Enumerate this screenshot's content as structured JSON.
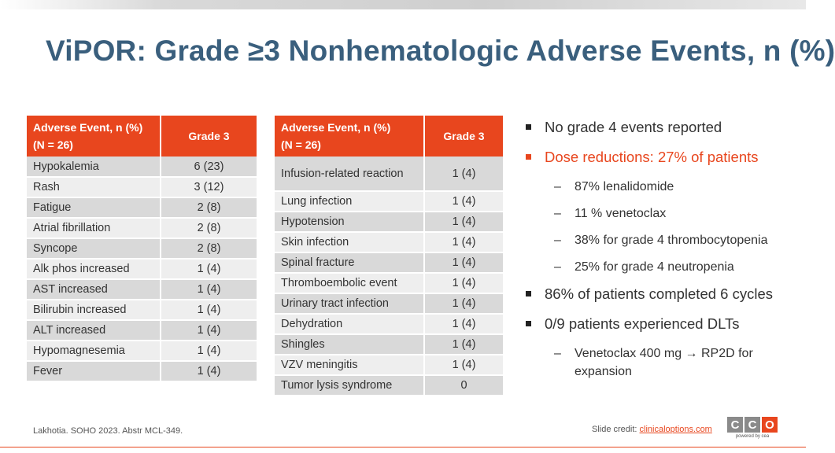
{
  "title": "ViPOR: Grade ≥3 Nonhematologic Adverse Events, n (%)",
  "table1": {
    "header_line1": "Adverse Event, n (%)",
    "header_line2": "(N = 26)",
    "grade_header": "Grade 3",
    "rows": [
      {
        "event": "Hypokalemia",
        "value": "6 (23)"
      },
      {
        "event": "Rash",
        "value": "3 (12)"
      },
      {
        "event": "Fatigue",
        "value": "2 (8)"
      },
      {
        "event": "Atrial fibrillation",
        "value": "2 (8)"
      },
      {
        "event": "Syncope",
        "value": "2 (8)"
      },
      {
        "event": "Alk phos increased",
        "value": "1 (4)"
      },
      {
        "event": "AST increased",
        "value": "1 (4)"
      },
      {
        "event": "Bilirubin increased",
        "value": "1 (4)"
      },
      {
        "event": "ALT increased",
        "value": "1 (4)"
      },
      {
        "event": "Hypomagnesemia",
        "value": "1 (4)"
      },
      {
        "event": "Fever",
        "value": "1 (4)"
      }
    ]
  },
  "table2": {
    "header_line1": "Adverse Event, n (%)",
    "header_line2": "(N = 26)",
    "grade_header": "Grade 3",
    "rows": [
      {
        "event": "Infusion-related reaction",
        "value": "1 (4)"
      },
      {
        "event": "Lung infection",
        "value": "1 (4)"
      },
      {
        "event": "Hypotension",
        "value": "1 (4)"
      },
      {
        "event": "Skin infection",
        "value": "1 (4)"
      },
      {
        "event": "Spinal fracture",
        "value": "1 (4)"
      },
      {
        "event": "Thromboembolic event",
        "value": "1 (4)"
      },
      {
        "event": "Urinary tract infection",
        "value": "1 (4)"
      },
      {
        "event": "Dehydration",
        "value": "1 (4)"
      },
      {
        "event": "Shingles",
        "value": "1 (4)"
      },
      {
        "event": "VZV meningitis",
        "value": "1 (4)"
      },
      {
        "event": "Tumor lysis syndrome",
        "value": "0"
      }
    ]
  },
  "bullets": {
    "no_grade4": "No grade 4 events reported",
    "dose_reductions": "Dose reductions: 27% of patients",
    "dose_sub": [
      "87% lenalidomide",
      "11 % venetoclax",
      "38% for grade 4 thrombocytopenia",
      "25% for grade 4 neutropenia"
    ],
    "completed": "86% of patients completed 6 cycles",
    "dlts": "0/9 patients experienced DLTs",
    "dlts_sub": "Venetoclax 400 mg → RP2D for expansion"
  },
  "footer": {
    "citation": "Lakhotia. SOHO 2023. Abstr MCL-349.",
    "credit_label": "Slide credit: ",
    "credit_link": "clinicaloptions.com",
    "logo_letters": [
      "C",
      "C",
      "O"
    ],
    "logo_tag": "powered by cea"
  },
  "colors": {
    "accent": "#e8461e",
    "title": "#3a5f7d",
    "row_dark": "#d9d9d9",
    "row_light": "#eeeeee"
  }
}
